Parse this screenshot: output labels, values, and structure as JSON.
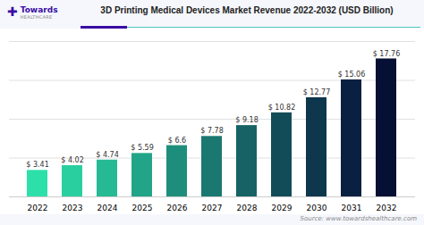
{
  "chart_data": {
    "type": "bar",
    "title": "3D Printing Medical Devices Market Revenue 2022-2032 (USD Billion)",
    "categories": [
      "2022",
      "2023",
      "2024",
      "2025",
      "2026",
      "2027",
      "2028",
      "2029",
      "2030",
      "2031",
      "2032"
    ],
    "values": [
      3.41,
      4.02,
      4.74,
      5.59,
      6.6,
      7.78,
      9.18,
      10.82,
      12.77,
      15.06,
      17.76
    ],
    "value_labels": [
      "$ 3.41",
      "$ 4.02",
      "$ 4.74",
      "$ 5.59",
      "$ 6.6",
      "$ 7.78",
      "$ 9.18",
      "$ 10.82",
      "$ 12.77",
      "$ 15.06",
      "$ 17.76"
    ],
    "colors": [
      "#2de0aa",
      "#2acfa0",
      "#26ba94",
      "#22a488",
      "#1e8e7c",
      "#1a7870",
      "#166264",
      "#124c58",
      "#0e364c",
      "#0a2040",
      "#061034"
    ],
    "ylim": [
      0,
      20
    ],
    "yticks": [
      0,
      5,
      10,
      15,
      20
    ],
    "grid": true,
    "data_labels": true,
    "tick_labels": "x",
    "annotations": [
      "✚",
      "Towards",
      "HEALTHCARE",
      "Source: www.towardshealthcare.com"
    ]
  }
}
